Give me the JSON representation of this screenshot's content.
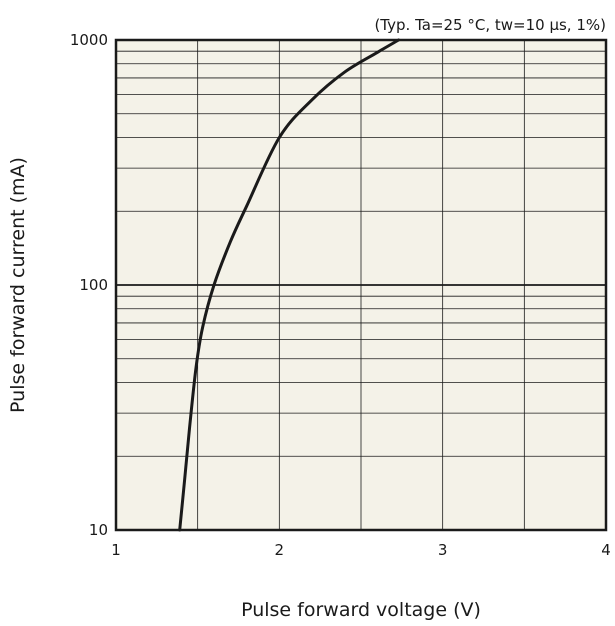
{
  "chart_data": {
    "type": "line",
    "title": "",
    "annotation": "(Typ. Ta=25 °C, tw=10 µs, 1%)",
    "xlabel": "Pulse forward voltage (V)",
    "ylabel": "Pulse forward current (mA)",
    "xlim": [
      1,
      4
    ],
    "ylim": [
      10,
      1000
    ],
    "y_scale": "log",
    "grid": true,
    "x_ticks": [
      "1",
      "2",
      "3",
      "4"
    ],
    "y_ticks": [
      "10",
      "100",
      "1000"
    ],
    "series": [
      {
        "x": [
          1.39,
          1.42,
          1.45,
          1.49,
          1.53,
          1.6,
          1.7,
          1.8,
          2.0,
          2.2,
          2.4,
          2.6,
          2.73
        ],
        "y": [
          10,
          16,
          26,
          46,
          67,
          100,
          150,
          210,
          400,
          570,
          740,
          890,
          1000
        ]
      }
    ]
  }
}
